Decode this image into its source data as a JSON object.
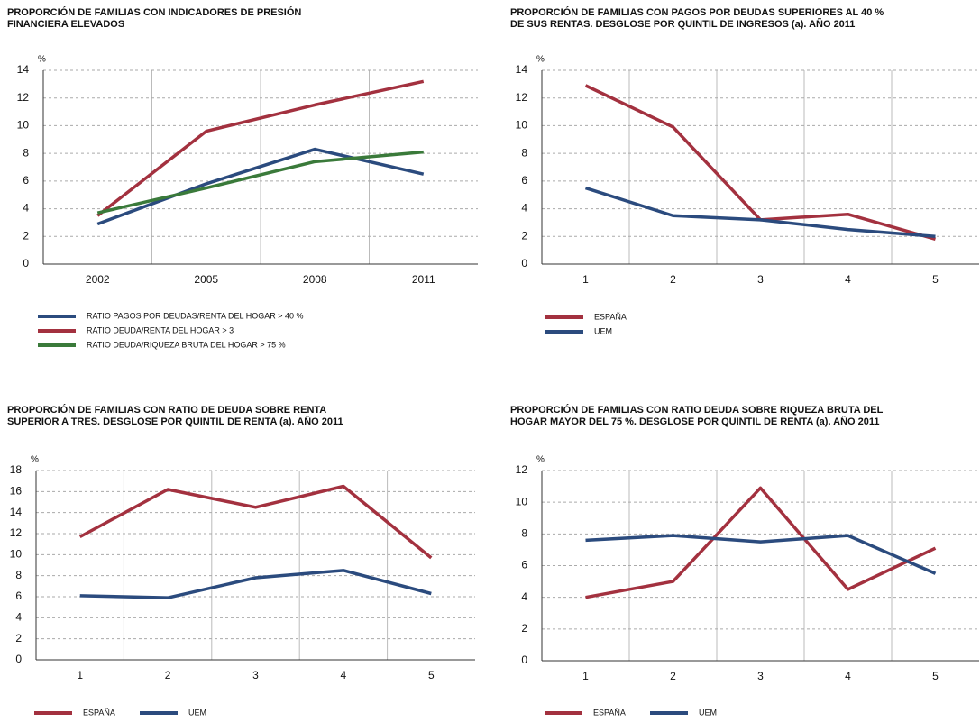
{
  "chart_data": [
    {
      "type": "line",
      "title": [
        "PROPORCIÓN DE FAMILIAS CON INDICADORES DE PRESIÓN",
        "FINANCIERA ELEVADOS"
      ],
      "y_unit": "%",
      "categories": [
        "2002",
        "2005",
        "2008",
        "2011"
      ],
      "series": [
        {
          "name": "RATIO PAGOS POR DEUDAS/RENTA DEL HOGAR > 40 %",
          "color": "#2b4b7e",
          "values": [
            2.9,
            5.8,
            8.3,
            6.5
          ]
        },
        {
          "name": "RATIO DEUDA/RENTA DEL HOGAR > 3",
          "color": "#a3313f",
          "values": [
            3.5,
            9.6,
            11.5,
            13.2
          ]
        },
        {
          "name": "RATIO DEUDA/RIQUEZA BRUTA DEL HOGAR > 75 %",
          "color": "#3a7a3a",
          "values": [
            3.7,
            5.5,
            7.4,
            8.1
          ]
        }
      ],
      "ylim": [
        0,
        14
      ],
      "yticks": [
        0,
        2,
        4,
        6,
        8,
        10,
        12,
        14
      ],
      "grid": true
    },
    {
      "type": "line",
      "title": [
        "PROPORCIÓN DE FAMILIAS CON PAGOS POR DEUDAS SUPERIORES AL 40 %",
        "DE SUS RENTAS. DESGLOSE POR QUINTIL DE INGRESOS (a). AÑO 2011"
      ],
      "y_unit": "%",
      "categories": [
        "1",
        "2",
        "3",
        "4",
        "5"
      ],
      "series": [
        {
          "name": "ESPAÑA",
          "color": "#a3313f",
          "values": [
            12.9,
            9.9,
            3.2,
            3.6,
            1.8
          ]
        },
        {
          "name": "UEM",
          "color": "#2b4b7e",
          "values": [
            5.5,
            3.5,
            3.2,
            2.5,
            2.0
          ]
        }
      ],
      "ylim": [
        0,
        14
      ],
      "yticks": [
        0,
        2,
        4,
        6,
        8,
        10,
        12,
        14
      ],
      "grid": true
    },
    {
      "type": "line",
      "title": [
        "PROPORCIÓN DE FAMILIAS CON RATIO DE DEUDA SOBRE RENTA",
        "SUPERIOR A TRES. DESGLOSE POR QUINTIL DE RENTA (a). AÑO 2011"
      ],
      "y_unit": "%",
      "categories": [
        "1",
        "2",
        "3",
        "4",
        "5"
      ],
      "series": [
        {
          "name": "ESPAÑA",
          "color": "#a3313f",
          "values": [
            11.7,
            16.2,
            14.5,
            16.5,
            9.7
          ]
        },
        {
          "name": "UEM",
          "color": "#2b4b7e",
          "values": [
            6.1,
            5.9,
            7.8,
            8.5,
            6.3
          ]
        }
      ],
      "ylim": [
        0,
        18
      ],
      "yticks": [
        0,
        2,
        4,
        6,
        8,
        10,
        12,
        14,
        16,
        18
      ],
      "grid": true
    },
    {
      "type": "line",
      "title": [
        "PROPORCIÓN DE FAMILIAS CON RATIO DEUDA SOBRE RIQUEZA BRUTA DEL",
        "HOGAR MAYOR DEL 75 %. DESGLOSE POR QUINTIL DE RENTA (a). AÑO 2011"
      ],
      "y_unit": "%",
      "categories": [
        "1",
        "2",
        "3",
        "4",
        "5"
      ],
      "series": [
        {
          "name": "ESPAÑA",
          "color": "#a3313f",
          "values": [
            4.0,
            5.0,
            10.9,
            4.5,
            7.1
          ]
        },
        {
          "name": "UEM",
          "color": "#2b4b7e",
          "values": [
            7.6,
            7.9,
            7.5,
            7.9,
            5.5
          ]
        }
      ],
      "ylim": [
        0,
        12
      ],
      "yticks": [
        0,
        2,
        4,
        6,
        8,
        10,
        12
      ],
      "grid": true
    }
  ]
}
